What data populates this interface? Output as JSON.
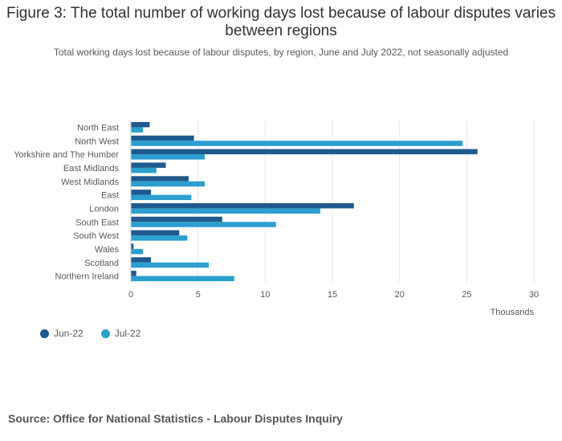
{
  "title": "Figure 3: The total number of working days lost because of labour disputes varies between regions",
  "subtitle": "Total working days lost because of labour disputes, by region, June and July 2022, not seasonally adjusted",
  "source": "Source: Office for National Statistics - Labour Disputes Inquiry",
  "colors": {
    "jun": "#1f5a8f",
    "jul": "#2a9fd0",
    "grid": "#e6e6e6"
  },
  "chart_data": {
    "type": "bar",
    "orientation": "horizontal",
    "categories": [
      "North East",
      "North West",
      "Yorkshire and The Humber",
      "East Midlands",
      "West Midlands",
      "East",
      "London",
      "South East",
      "South West",
      "Wales",
      "Scotland",
      "Northern Ireland"
    ],
    "series": [
      {
        "name": "Jun-22",
        "values": [
          1.4,
          4.7,
          25.8,
          2.6,
          4.3,
          1.5,
          16.6,
          6.8,
          3.6,
          0.2,
          1.5,
          0.4
        ]
      },
      {
        "name": "Jul-22",
        "values": [
          0.9,
          24.7,
          5.5,
          1.9,
          5.5,
          4.5,
          14.1,
          10.8,
          4.2,
          0.9,
          5.8,
          7.7
        ]
      }
    ],
    "xticks": [
      "0",
      "5",
      "10",
      "15",
      "20",
      "25",
      "30"
    ],
    "xlim": [
      0,
      30
    ],
    "xlabel": "Thousands",
    "grid": true,
    "legend_position": "bottom-left"
  }
}
